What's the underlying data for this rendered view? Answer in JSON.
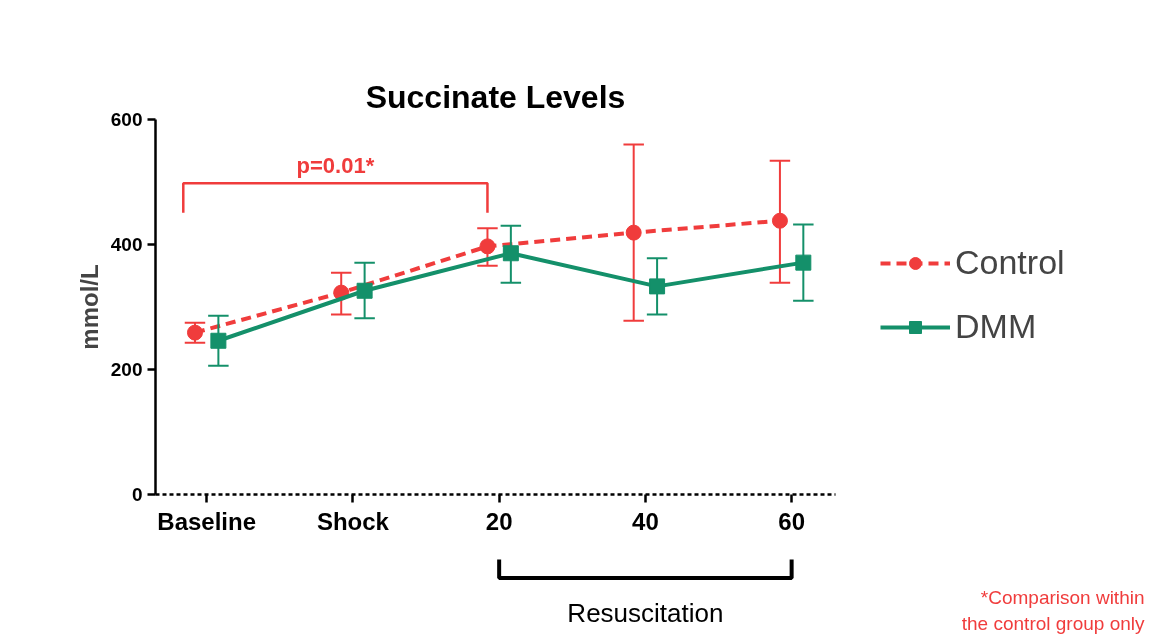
{
  "chart_data": {
    "type": "line",
    "title": "Succinate Levels",
    "ylabel": "mmol/L",
    "categories": [
      "Baseline",
      "Shock",
      "20",
      "40",
      "60"
    ],
    "series": [
      {
        "name": "Control",
        "color": "#f03c3c",
        "marker": "circle",
        "line_style": "dashed",
        "values": [
          259,
          323,
          397,
          419,
          438
        ],
        "errors": [
          [
            243,
            275
          ],
          [
            288,
            355
          ],
          [
            366,
            426
          ],
          [
            278,
            560
          ],
          [
            339,
            534
          ]
        ]
      },
      {
        "name": "DMM",
        "color": "#14906a",
        "marker": "square",
        "line_style": "solid",
        "values": [
          246,
          326,
          386,
          333,
          371
        ],
        "errors": [
          [
            206,
            286
          ],
          [
            282,
            371
          ],
          [
            339,
            430
          ],
          [
            288,
            378
          ],
          [
            310,
            432
          ]
        ]
      }
    ],
    "ylim": [
      0,
      600
    ],
    "yticks": [
      0,
      200,
      400,
      600
    ],
    "grid": false,
    "legend": "right",
    "annotations": [
      "p=0.01*",
      "Resuscitation",
      "*Comparison within\nthe control group only"
    ]
  }
}
